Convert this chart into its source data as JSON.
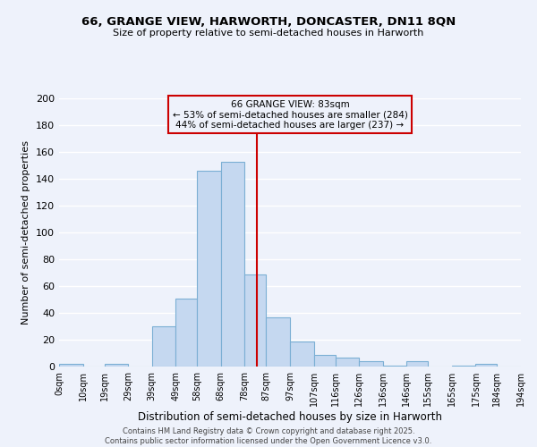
{
  "title": "66, GRANGE VIEW, HARWORTH, DONCASTER, DN11 8QN",
  "subtitle": "Size of property relative to semi-detached houses in Harworth",
  "xlabel": "Distribution of semi-detached houses by size in Harworth",
  "ylabel": "Number of semi-detached properties",
  "bar_color": "#c5d8f0",
  "bar_edge_color": "#7bafd4",
  "bin_edges": [
    0,
    10,
    19,
    29,
    39,
    49,
    58,
    68,
    78,
    87,
    97,
    107,
    116,
    126,
    136,
    146,
    155,
    165,
    175,
    184,
    194
  ],
  "bin_labels": [
    "0sqm",
    "10sqm",
    "19sqm",
    "29sqm",
    "39sqm",
    "49sqm",
    "58sqm",
    "68sqm",
    "78sqm",
    "87sqm",
    "97sqm",
    "107sqm",
    "116sqm",
    "126sqm",
    "136sqm",
    "146sqm",
    "155sqm",
    "165sqm",
    "175sqm",
    "184sqm",
    "194sqm"
  ],
  "counts": [
    2,
    0,
    2,
    0,
    30,
    51,
    146,
    153,
    69,
    37,
    19,
    9,
    7,
    4,
    1,
    4,
    0,
    1,
    2,
    0
  ],
  "vline_x": 83,
  "vline_color": "#cc0000",
  "annotation_title": "66 GRANGE VIEW: 83sqm",
  "annotation_line1": "← 53% of semi-detached houses are smaller (284)",
  "annotation_line2": "44% of semi-detached houses are larger (237) →",
  "annotation_box_color": "#cc0000",
  "ylim": [
    0,
    200
  ],
  "yticks": [
    0,
    20,
    40,
    60,
    80,
    100,
    120,
    140,
    160,
    180,
    200
  ],
  "footer1": "Contains HM Land Registry data © Crown copyright and database right 2025.",
  "footer2": "Contains public sector information licensed under the Open Government Licence v3.0.",
  "background_color": "#eef2fb",
  "grid_color": "#ffffff"
}
